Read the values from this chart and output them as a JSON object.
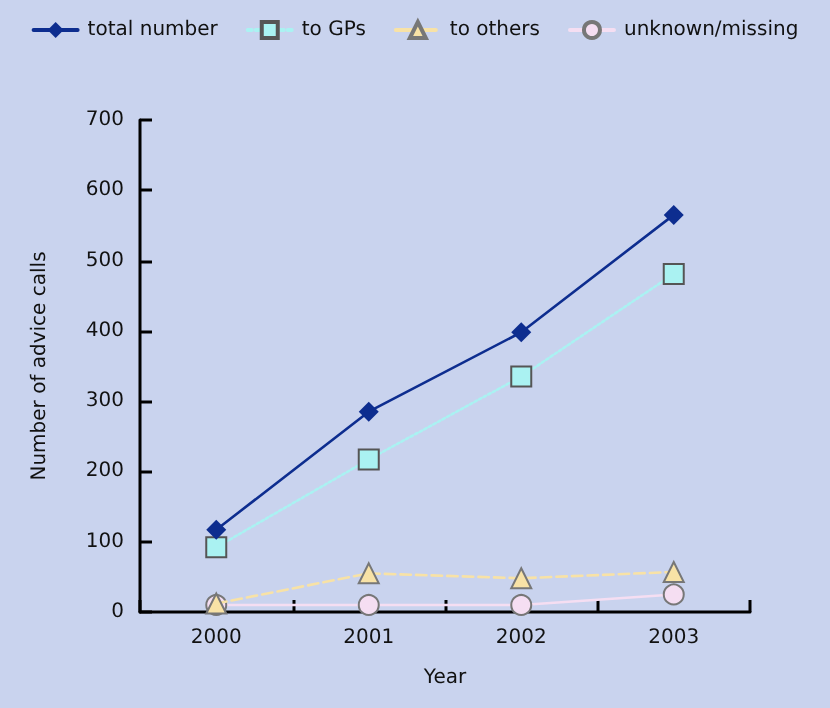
{
  "chart_data": {
    "type": "line",
    "xlabel": "Year",
    "ylabel": "Number of advice calls",
    "categories": [
      "2000",
      "2001",
      "2002",
      "2003"
    ],
    "series": [
      {
        "name": "total number",
        "color": "#0d2d8f",
        "marker": "diamond",
        "line_style": "solid",
        "values": [
          117,
          285,
          398,
          565
        ]
      },
      {
        "name": "to GPs",
        "color": "#aaf2f2",
        "marker": "square",
        "line_style": "dotted",
        "values": [
          92,
          217,
          335,
          481
        ]
      },
      {
        "name": "to others",
        "color": "#f8e2a6",
        "marker": "triangle",
        "line_style": "dashed",
        "values": [
          12,
          55,
          48,
          57
        ]
      },
      {
        "name": "unknown/missing",
        "color": "#f5def2",
        "marker": "circle",
        "line_style": "solid",
        "values": [
          10,
          10,
          10,
          25
        ]
      }
    ],
    "ylim": [
      0,
      700
    ],
    "yticks": [
      0,
      100,
      200,
      300,
      400,
      500,
      600,
      700
    ],
    "grid": false,
    "legend": "top"
  }
}
